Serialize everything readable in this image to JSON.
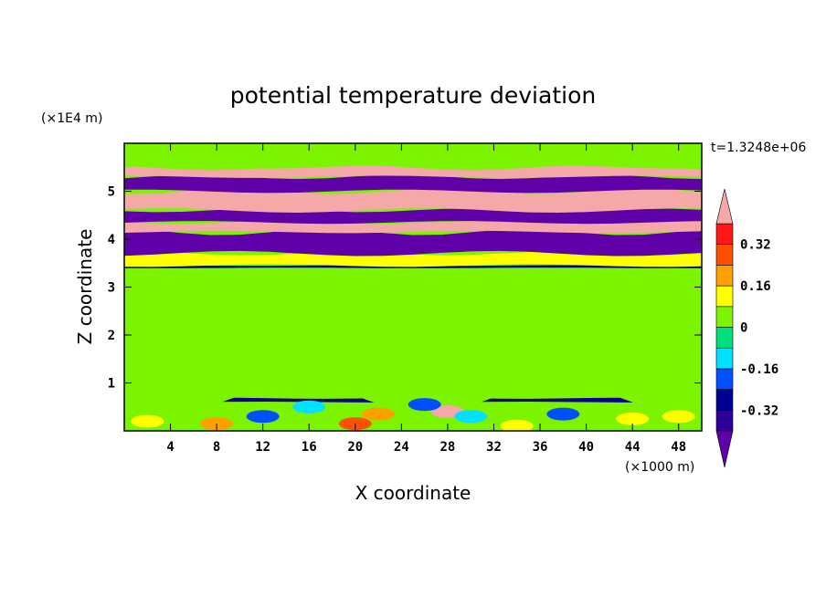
{
  "chart_data": {
    "type": "heatmap",
    "title": "potential temperature deviation",
    "xlabel": "X coordinate",
    "ylabel": "Z coordinate",
    "x_unit": "(×1000 m)",
    "y_unit": "(×1E4 m)",
    "time_label": "t=1.3248e+06",
    "xlim": [
      0,
      50
    ],
    "ylim": [
      0,
      6
    ],
    "x_ticks": [
      4,
      8,
      12,
      16,
      20,
      24,
      28,
      32,
      36,
      40,
      44,
      48
    ],
    "y_ticks": [
      1,
      2,
      3,
      4,
      5
    ],
    "colorbar": {
      "levels": [
        -0.4,
        -0.32,
        -0.24,
        -0.16,
        -0.08,
        0,
        0.08,
        0.16,
        0.24,
        0.32,
        0.4
      ],
      "labels": [
        "0.32",
        "0.16",
        "0",
        "-0.16",
        "-0.32"
      ],
      "label_values": [
        0.32,
        0.16,
        0,
        -0.16,
        -0.32
      ],
      "colors_low_to_high": [
        "#2f0099",
        "#000090",
        "#0050ff",
        "#00e0ff",
        "#00e07a",
        "#7cf400",
        "#ffff00",
        "#ffa000",
        "#ff5000",
        "#ff1818"
      ],
      "under_color": "#6000a8",
      "over_color": "#f4a8a8"
    },
    "bands": [
      {
        "z": [
          0.0,
          0.6
        ],
        "value": 0.05,
        "note": "lower layer with warm and cool patches"
      },
      {
        "z": [
          0.6,
          0.68
        ],
        "value": -0.3
      },
      {
        "z": [
          0.68,
          3.4
        ],
        "value": 0.04
      },
      {
        "z": [
          3.4,
          3.45
        ],
        "value": -0.3
      },
      {
        "z": [
          3.45,
          3.7
        ],
        "value": 0.1
      },
      {
        "z": [
          3.7,
          4.15
        ],
        "value": -0.45
      },
      {
        "z": [
          4.15,
          4.35
        ],
        "value": 0.45
      },
      {
        "z": [
          4.35,
          4.6
        ],
        "value": -0.45
      },
      {
        "z": [
          4.6,
          5.0
        ],
        "value": 0.45
      },
      {
        "z": [
          5.0,
          5.3
        ],
        "value": -0.45
      },
      {
        "z": [
          5.3,
          5.5
        ],
        "value": 0.45
      },
      {
        "z": [
          5.5,
          6.0
        ],
        "value": 0.04
      }
    ]
  }
}
